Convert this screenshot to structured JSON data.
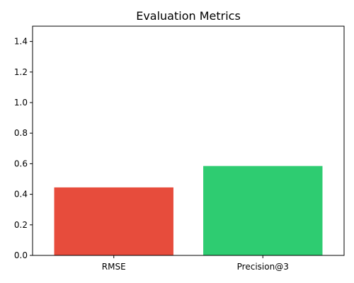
{
  "chart_data": {
    "type": "bar",
    "title": "Evaluation Metrics",
    "xlabel": "",
    "ylabel": "",
    "categories": [
      "RMSE",
      "Precision@3"
    ],
    "values": [
      0.445,
      0.585
    ],
    "colors": [
      "#e74c3c",
      "#2ecc71"
    ],
    "ylim": [
      0,
      1.5
    ],
    "yticks": [
      "0.0",
      "0.2",
      "0.4",
      "0.6",
      "0.8",
      "1.0",
      "1.2",
      "1.4"
    ],
    "grid": false
  }
}
